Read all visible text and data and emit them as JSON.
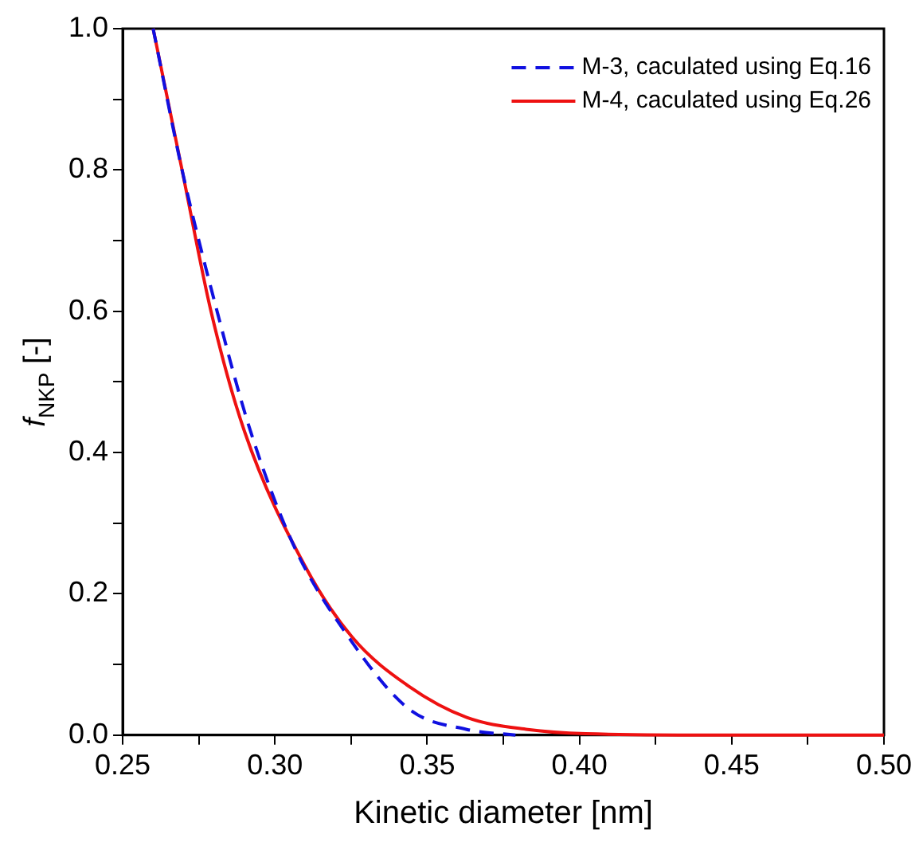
{
  "chart_data": {
    "type": "line",
    "xlabel": "Kinetic diameter [nm]",
    "ylabel": "f$_{NKP}$ [-]",
    "xlim": [
      0.25,
      0.5
    ],
    "xticks": [
      0.25,
      {
        "value": 0.275,
        "label": null
      },
      {
        "value": 0.3,
        "label": "0.30"
      },
      {
        "value": 0.325,
        "label": null
      },
      0.35,
      {
        "value": 0.375,
        "label": null
      },
      {
        "value": 0.4,
        "label": "0.40"
      },
      {
        "value": 0.425,
        "label": null
      },
      0.45,
      {
        "value": 0.475,
        "label": null
      },
      {
        "value": 0.5,
        "label": "0.50"
      }
    ],
    "ylim": [
      0,
      1
    ],
    "yticks": [
      {
        "value": 0,
        "label": "0.0"
      },
      {
        "value": 0.1,
        "label": null
      },
      0.2,
      {
        "value": 0.3,
        "label": null
      },
      0.4,
      {
        "value": 0.5,
        "label": null
      },
      0.6,
      {
        "value": 0.7,
        "label": null
      },
      0.8,
      {
        "value": 0.9,
        "label": null
      },
      {
        "value": 1,
        "label": "1.0"
      }
    ],
    "grid": false,
    "legend": "top right",
    "marker": "none",
    "series": [
      {
        "name": "M-3, caculated using Eq.16",
        "color": "#1010e0",
        "line_style": "dashed",
        "x": [
          0.26,
          0.2695,
          0.281,
          0.292,
          0.306,
          0.323,
          0.344,
          0.363,
          0.379
        ],
        "values": [
          1.0,
          0.8,
          0.6,
          0.43,
          0.27,
          0.146,
          0.037,
          0.008,
          0
        ]
      },
      {
        "name": "M-4, caculated using Eq.26",
        "color": "#ee1111",
        "line_style": "solid",
        "x": [
          0.26,
          0.2695,
          0.279,
          0.29,
          0.3098,
          0.3253,
          0.344,
          0.363,
          0.383,
          0.402,
          0.45,
          0.5
        ],
        "values": [
          1.0,
          0.8,
          0.6,
          0.43,
          0.24,
          0.139,
          0.069,
          0.025,
          0.008,
          0.002,
          0,
          0
        ]
      }
    ]
  }
}
